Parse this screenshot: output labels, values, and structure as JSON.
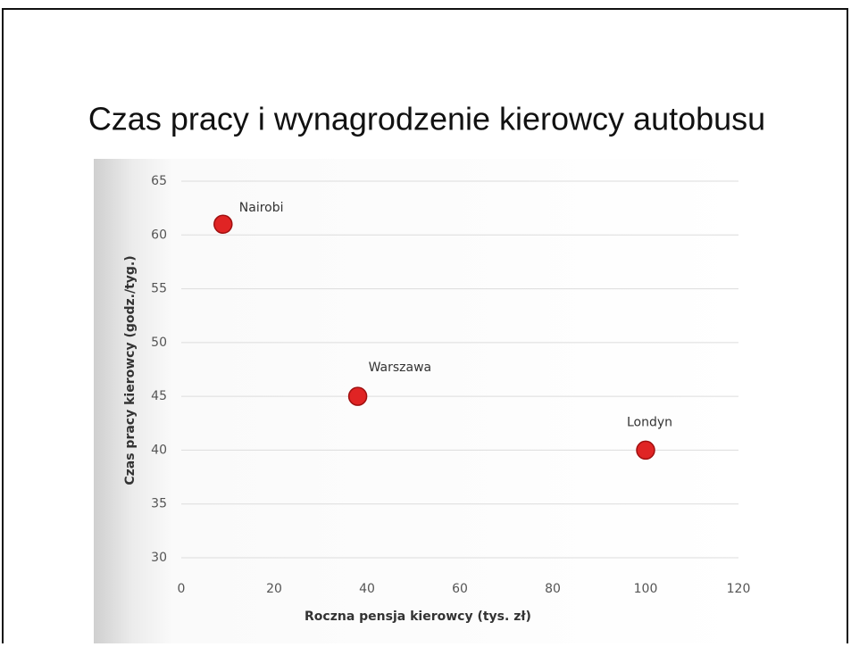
{
  "chart_data": {
    "type": "scatter",
    "title": "Czas pracy i wynagrodzenie kierowcy autobusu",
    "x_label": "Roczna pensja kierowcy (tys. zł)",
    "y_label": "Czas pracy kierowcy (godz./tyg.)",
    "series": [
      {
        "color": "#e02424",
        "x": [
          9,
          38,
          100
        ],
        "values": [
          61,
          45,
          40
        ],
        "labels": [
          "Nairobi",
          "Warszawa",
          "Londyn"
        ]
      }
    ],
    "xlim": [
      0,
      120
    ],
    "xticks": [
      0,
      20,
      40,
      60,
      80,
      100,
      120
    ],
    "ylim": [
      30,
      65
    ],
    "yticks": [
      30,
      35,
      40,
      45,
      50,
      55,
      60,
      65
    ],
    "grid": true
  }
}
